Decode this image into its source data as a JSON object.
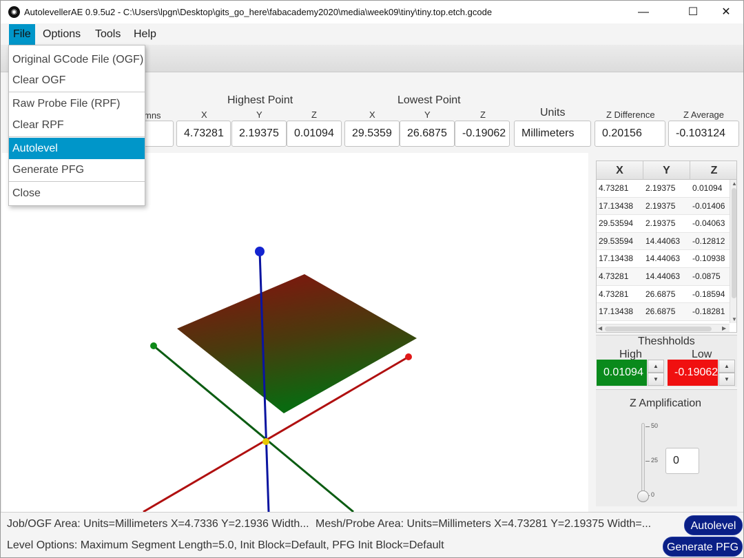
{
  "window": {
    "title": "AutolevellerAE 0.9.5u2 - C:\\Users\\lpgn\\Desktop\\gits_go_here\\fabacademy2020\\media\\week09\\tiny\\tiny.top.etch.gcode",
    "icon": "app-logo-icon",
    "minimize_glyph": "—",
    "maximize_glyph": "☐",
    "close_glyph": "✕"
  },
  "menubar": {
    "items": [
      {
        "label": "File",
        "active": true
      },
      {
        "label": "Options"
      },
      {
        "label": "Tools"
      },
      {
        "label": "Help"
      }
    ]
  },
  "file_menu": {
    "items": [
      {
        "label": "Original GCode File (OGF)"
      },
      {
        "label": "Clear OGF"
      },
      {
        "label": "Raw Probe File (RPF)"
      },
      {
        "label": "Clear RPF"
      },
      {
        "label": "Autolevel",
        "highlighted": true
      },
      {
        "label": "Generate PFG"
      },
      {
        "label": "Close"
      }
    ]
  },
  "summary": {
    "columns_label": "mns",
    "highest_label": "Highest Point",
    "lowest_label": "Lowest Point",
    "x_label": "X",
    "y_label": "Y",
    "z_label": "Z",
    "units_label": "Units",
    "zdiff_label": "Z Difference",
    "zavg_label": "Z Average",
    "high_x": "4.73281",
    "high_y": "2.19375",
    "high_z": "0.01094",
    "low_x": "29.5359",
    "low_y": "26.6875",
    "low_z": "-0.19062",
    "units": "Millimeters",
    "z_difference": "0.20156",
    "z_average": "-0.103124"
  },
  "probe_table": {
    "headers": [
      "X",
      "Y",
      "Z"
    ],
    "rows": [
      [
        "4.73281",
        "2.19375",
        "0.01094"
      ],
      [
        "17.13438",
        "2.19375",
        "-0.01406"
      ],
      [
        "29.53594",
        "2.19375",
        "-0.04063"
      ],
      [
        "29.53594",
        "14.44063",
        "-0.12812"
      ],
      [
        "17.13438",
        "14.44063",
        "-0.10938"
      ],
      [
        "4.73281",
        "14.44063",
        "-0.0875"
      ],
      [
        "4.73281",
        "26.6875",
        "-0.18594"
      ],
      [
        "17.13438",
        "26.6875",
        "-0.18281"
      ]
    ]
  },
  "thresholds": {
    "title": "Theshholds",
    "high_label": "High",
    "low_label": "Low",
    "high_value": "0.01094",
    "low_value": "-0.19062",
    "high_color": "#0a8a1c",
    "low_color": "#f01010"
  },
  "amplification": {
    "title": "Z Amplification",
    "tick_max": "50",
    "tick_mid": "25",
    "tick_min": "0",
    "value": "0",
    "slider_fraction": 0
  },
  "status": {
    "job_area": "Job/OGF Area: Units=Millimeters X=4.7336 Y=2.1936 Width...",
    "mesh_area": "Mesh/Probe Area: Units=Millimeters X=4.73281 Y=2.19375 Width=...",
    "level_options": "Level Options: Maximum Segment Length=5.0, Init Block=Default, PFG Init Block=Default",
    "autolevel_button": "Autolevel",
    "generate_button": "Generate PFG"
  },
  "colors": {
    "accent": "#0096c9",
    "button_navy": "#0a1f86",
    "axis_blue": "#0a14a0",
    "axis_red": "#b01010",
    "axis_green": "#0b5c12",
    "plane_top": "#8a0f0f",
    "plane_bottom": "#0a6a10"
  }
}
